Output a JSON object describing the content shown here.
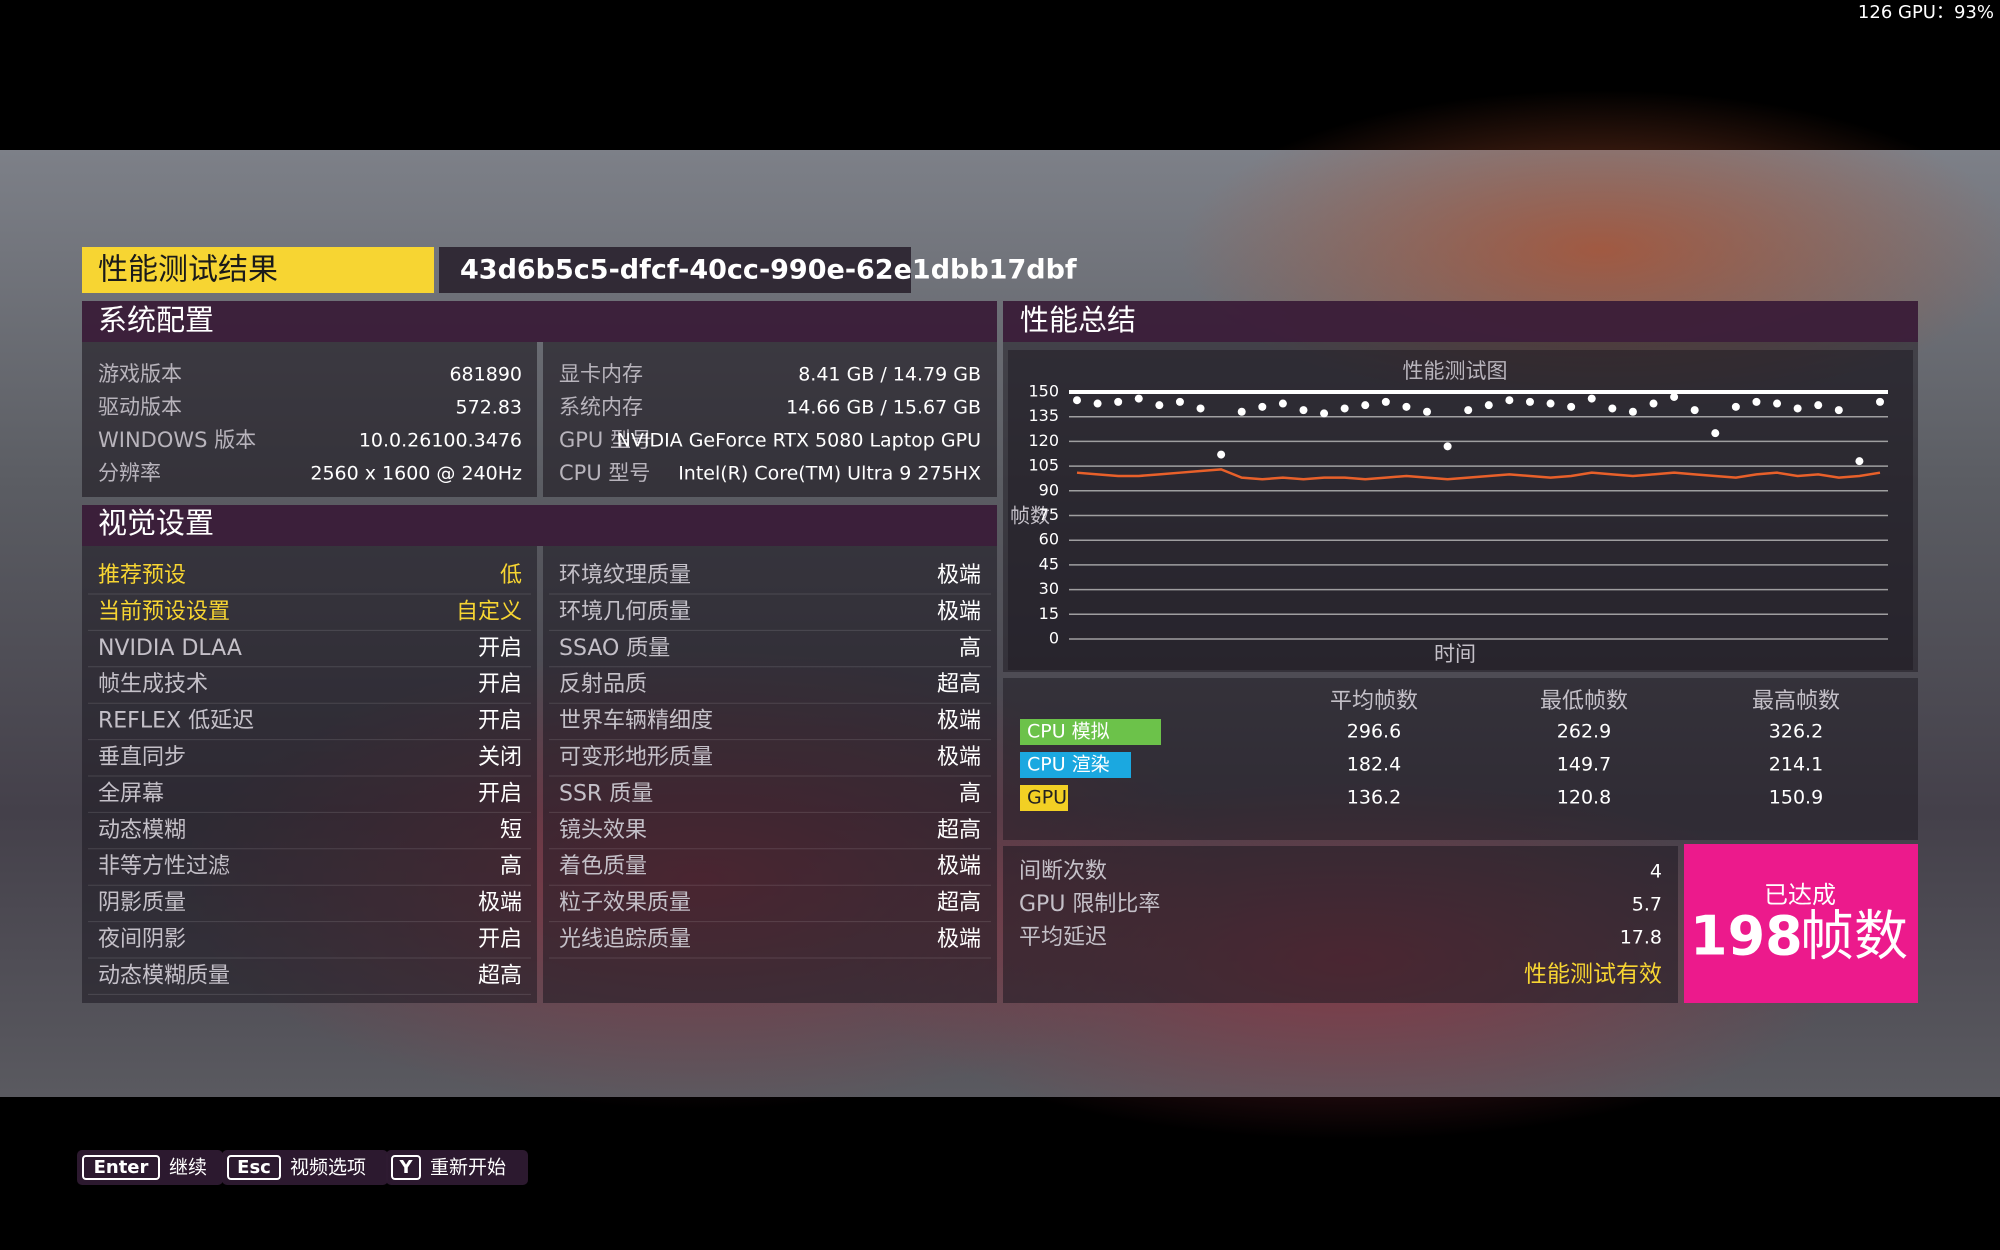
{
  "overlay": "126 GPU：93%",
  "header": {
    "title": "性能测试结果",
    "id": "43d6b5c5-dfcf-40cc-990e-62e1dbb17dbf"
  },
  "system_config": {
    "title": "系统配置",
    "left": [
      {
        "label": "游戏版本",
        "value": "681890"
      },
      {
        "label": "驱动版本",
        "value": "572.83"
      },
      {
        "label": "WINDOWS 版本",
        "value": "10.0.26100.3476"
      },
      {
        "label": "分辨率",
        "value": "2560 x 1600 @ 240Hz"
      }
    ],
    "right": [
      {
        "label": "显卡内存",
        "value": "8.41 GB / 14.79 GB"
      },
      {
        "label": "系统内存",
        "value": "14.66 GB / 15.67 GB"
      },
      {
        "label": "GPU 型号",
        "value": "NVIDIA GeForce RTX 5080 Laptop GPU"
      },
      {
        "label": "CPU 型号",
        "value": "Intel(R) Core(TM) Ultra 9 275HX"
      }
    ]
  },
  "visual_settings": {
    "title": "视觉设置",
    "left": [
      {
        "label": "推荐预设",
        "value": "低"
      },
      {
        "label": "当前预设设置",
        "value": "自定义"
      },
      {
        "label": "NVIDIA DLAA",
        "value": "开启"
      },
      {
        "label": "帧生成技术",
        "value": "开启"
      },
      {
        "label": "REFLEX 低延迟",
        "value": "开启"
      },
      {
        "label": "垂直同步",
        "value": "关闭"
      },
      {
        "label": "全屏幕",
        "value": "开启"
      },
      {
        "label": "动态模糊",
        "value": "短"
      },
      {
        "label": "非等方性过滤",
        "value": "高"
      },
      {
        "label": "阴影质量",
        "value": "极端"
      },
      {
        "label": "夜间阴影",
        "value": "开启"
      },
      {
        "label": "动态模糊质量",
        "value": "超高"
      }
    ],
    "right": [
      {
        "label": "环境纹理质量",
        "value": "极端"
      },
      {
        "label": "环境几何质量",
        "value": "极端"
      },
      {
        "label": "SSAO 质量",
        "value": "高"
      },
      {
        "label": "反射品质",
        "value": "超高"
      },
      {
        "label": "世界车辆精细度",
        "value": "极端"
      },
      {
        "label": "可变形地形质量",
        "value": "极端"
      },
      {
        "label": "SSR 质量",
        "value": "高"
      },
      {
        "label": "镜头效果",
        "value": "超高"
      },
      {
        "label": "着色质量",
        "value": "极端"
      },
      {
        "label": "粒子效果质量",
        "value": "超高"
      },
      {
        "label": "光线追踪质量",
        "value": "极端"
      }
    ]
  },
  "summary": {
    "title": "性能总结",
    "stats": {
      "headers": [
        "平均帧数",
        "最低帧数",
        "最高帧数"
      ],
      "rows": [
        {
          "label": "CPU 模拟",
          "color": "#6cc24a",
          "label_color": "#ffffff",
          "values": [
            "296.6",
            "262.9",
            "326.2"
          ]
        },
        {
          "label": "CPU 渲染",
          "color": "#1ba8e0",
          "label_color": "#ffffff",
          "values": [
            "182.4",
            "149.7",
            "214.1"
          ]
        },
        {
          "label": "GPU",
          "color": "#f2d024",
          "label_color": "#222222",
          "values": [
            "136.2",
            "120.8",
            "150.9"
          ]
        }
      ]
    },
    "metrics": [
      {
        "label": "间断次数",
        "value": "4"
      },
      {
        "label": "GPU 限制比率",
        "value": "5.7"
      },
      {
        "label": "平均延迟",
        "value": "17.8"
      }
    ],
    "valid": "性能测试有效",
    "achieved": {
      "caption": "已达成",
      "value": "198",
      "unit": "帧数"
    }
  },
  "chart_data": {
    "type": "line",
    "title": "性能测试图",
    "x_label": "时间",
    "y_label": "帧数",
    "ylim": [
      0,
      150
    ],
    "yticks": [
      0,
      15,
      30,
      45,
      60,
      75,
      90,
      105,
      120,
      135,
      150
    ],
    "grid": true,
    "series": [
      {
        "color": "#ffffff",
        "marker": "dot",
        "values": [
          145,
          143,
          144,
          146,
          142,
          144,
          140,
          112,
          138,
          141,
          143,
          139,
          137,
          140,
          142,
          144,
          141,
          138,
          117,
          139,
          142,
          145,
          144,
          143,
          141,
          146,
          140,
          138,
          143,
          147,
          139,
          125,
          141,
          144,
          143,
          140,
          142,
          139,
          108,
          144
        ]
      },
      {
        "color": "#e8602a",
        "marker": "line",
        "values": [
          101,
          100,
          99,
          99,
          100,
          101,
          102,
          103,
          98,
          97,
          98,
          97,
          98,
          98,
          97,
          98,
          99,
          98,
          97,
          98,
          99,
          100,
          99,
          98,
          99,
          101,
          100,
          99,
          100,
          101,
          100,
          99,
          98,
          100,
          101,
          99,
          100,
          98,
          99,
          101
        ]
      }
    ]
  },
  "buttons": [
    {
      "key": "Enter",
      "action": "继续"
    },
    {
      "key": "Esc",
      "action": "视频选项"
    },
    {
      "key": "Y",
      "action": "重新开始"
    }
  ]
}
